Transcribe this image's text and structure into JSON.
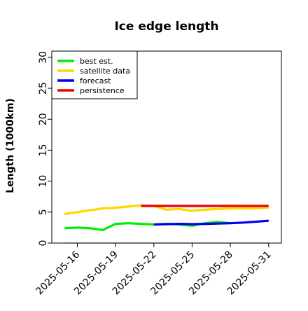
{
  "chart_data": {
    "type": "line",
    "title": "Ice edge length",
    "xlabel": "",
    "ylabel": "Length (1000km)",
    "ylim": [
      0,
      31
    ],
    "yticks": [
      0,
      5,
      10,
      15,
      20,
      25,
      30
    ],
    "xlim": [
      "2025-05-14",
      "2025-06-01"
    ],
    "xticks": [
      "2025-05-16",
      "2025-05-19",
      "2025-05-22",
      "2025-05-25",
      "2025-05-28",
      "2025-05-31"
    ],
    "xtick_highlight": {
      "label": "2025-05-22",
      "color": "#228b22"
    },
    "grid": false,
    "legend_position": "top-left",
    "series": [
      {
        "name": "best est.",
        "color": "#00ee00",
        "x": [
          "2025-05-15",
          "2025-05-16",
          "2025-05-17",
          "2025-05-18",
          "2025-05-19",
          "2025-05-20",
          "2025-05-21",
          "2025-05-22",
          "2025-05-23",
          "2025-05-24",
          "2025-05-25",
          "2025-05-26",
          "2025-05-27",
          "2025-05-28"
        ],
        "y": [
          2.4,
          2.5,
          2.4,
          2.1,
          3.1,
          3.2,
          3.1,
          3.0,
          3.1,
          3.0,
          2.8,
          3.2,
          3.4,
          3.2
        ]
      },
      {
        "name": "satellite data",
        "color": "#ffd700",
        "x": [
          "2025-05-15",
          "2025-05-16",
          "2025-05-17",
          "2025-05-18",
          "2025-05-19",
          "2025-05-20",
          "2025-05-21",
          "2025-05-22",
          "2025-05-23",
          "2025-05-24",
          "2025-05-25",
          "2025-05-26",
          "2025-05-27",
          "2025-05-28",
          "2025-05-29",
          "2025-05-30",
          "2025-05-31"
        ],
        "y": [
          4.7,
          5.0,
          5.3,
          5.6,
          5.7,
          5.9,
          6.1,
          6.0,
          5.4,
          5.5,
          5.2,
          5.4,
          5.5,
          5.6,
          5.6,
          5.6,
          5.7
        ]
      },
      {
        "name": "forecast",
        "color": "#0000ee",
        "x": [
          "2025-05-22",
          "2025-05-23",
          "2025-05-24",
          "2025-05-25",
          "2025-05-26",
          "2025-05-27",
          "2025-05-28",
          "2025-05-29",
          "2025-05-30",
          "2025-05-31"
        ],
        "y": [
          3.0,
          3.05,
          3.1,
          3.05,
          3.1,
          3.15,
          3.2,
          3.3,
          3.45,
          3.6
        ]
      },
      {
        "name": "persistence",
        "color": "#ee0000",
        "x": [
          "2025-05-21",
          "2025-05-31"
        ],
        "y": [
          6.0,
          6.0
        ]
      }
    ],
    "reference_line": {
      "y": 0,
      "x": [
        "2025-05-15",
        "2025-05-31"
      ],
      "color": "#808080"
    }
  }
}
